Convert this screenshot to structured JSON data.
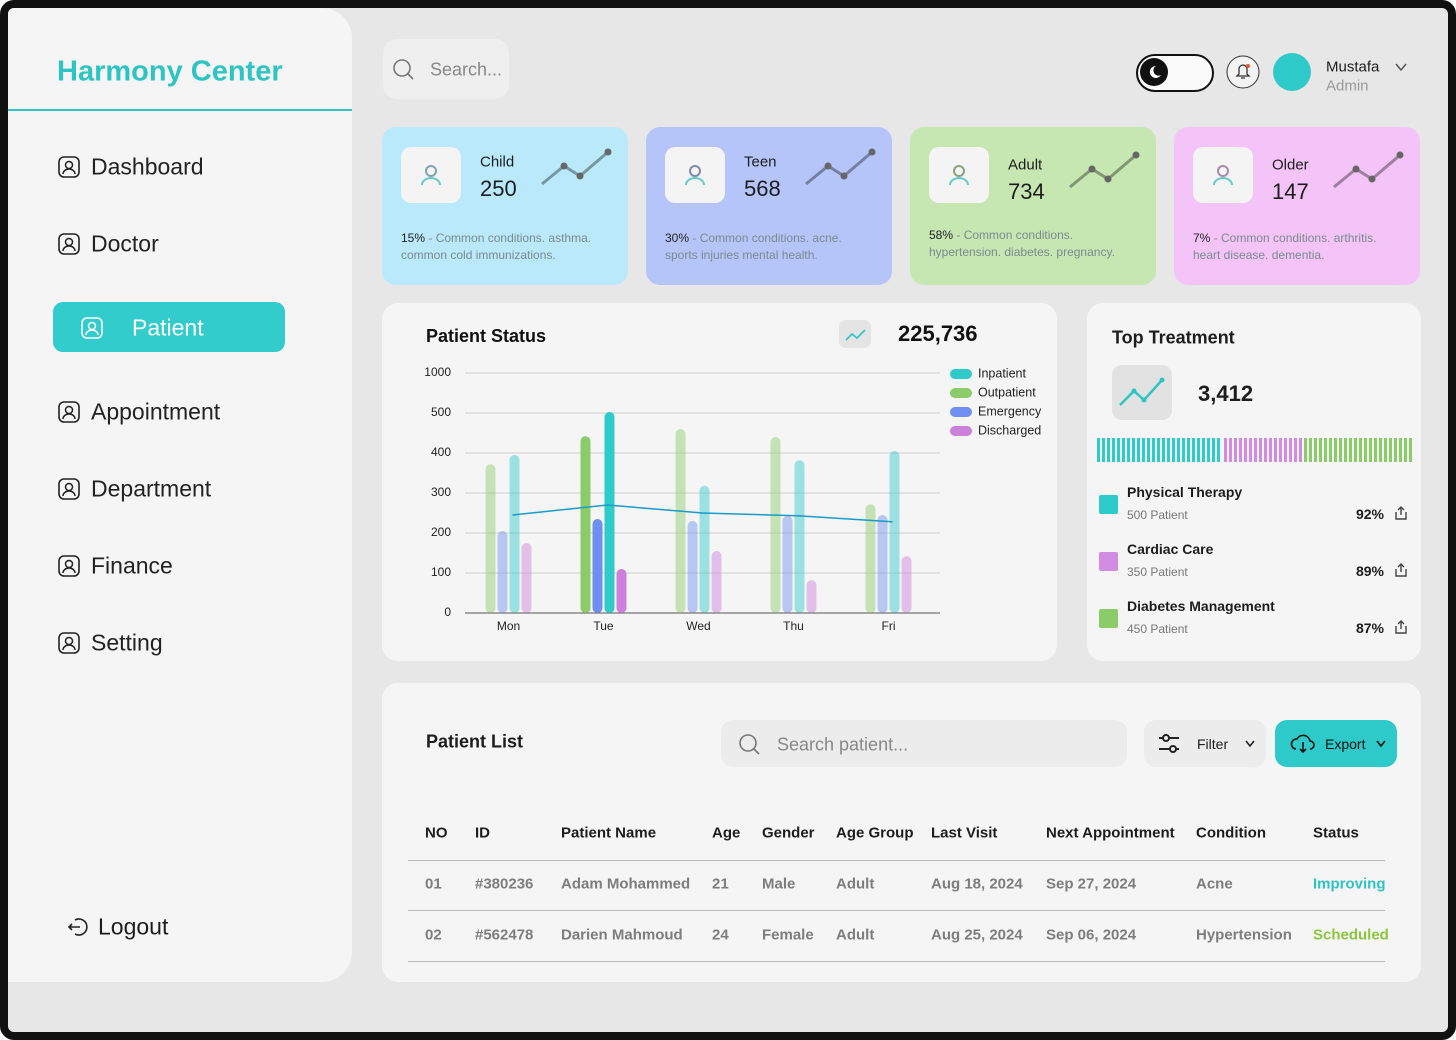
{
  "sidebar": {
    "brand": "Harmony Center",
    "nav": [
      "Dashboard",
      "Doctor",
      "Patient",
      "Appointment",
      "Department",
      "Finance",
      "Setting"
    ],
    "active": "Patient",
    "logout": "Logout"
  },
  "header": {
    "search_placeholder": "Search...",
    "user_name": "Mustafa",
    "user_role": "Admin"
  },
  "cards": [
    {
      "label": "Child",
      "value": 250,
      "percent": "15%",
      "description": [
        "- Common conditions. asthma.",
        "common cold immunizations."
      ],
      "color": "#b9e9fb"
    },
    {
      "label": "Teen",
      "value": 568,
      "percent": "30%",
      "description": [
        "- Common conditions. acne.",
        "sports injuries mental health."
      ],
      "color": "#b6c5f9"
    },
    {
      "label": "Adult",
      "value": 734,
      "percent": "58%",
      "description": [
        "- Common conditions.",
        "hypertension. diabetes. pregnancy."
      ],
      "color": "#c6e7b2"
    },
    {
      "label": "Older",
      "value": 147,
      "percent": "7%",
      "description": [
        "- Common conditions. arthritis.",
        "heart disease. dementia."
      ],
      "color": "#f4c4f8"
    }
  ],
  "chart_data": {
    "type": "bar",
    "title": "Patient Status",
    "total": "225,736",
    "categories": [
      "Mon",
      "Tue",
      "Wed",
      "Thu",
      "Fri"
    ],
    "series": [
      {
        "name": "Inpatient",
        "color": "#2fcaca",
        "values": [
          395,
          512,
          318,
          382,
          405
        ]
      },
      {
        "name": "Outpatient",
        "color": "#8ccb6a",
        "values": [
          372,
          442,
          460,
          440,
          272
        ]
      },
      {
        "name": "Emergency",
        "color": "#6f8ef0",
        "values": [
          205,
          235,
          230,
          243,
          245
        ]
      },
      {
        "name": "Discharged",
        "color": "#cc7fdb",
        "values": [
          175,
          110,
          155,
          82,
          142
        ]
      }
    ],
    "trend": {
      "color": "#1a9bc8",
      "values": [
        245,
        270,
        250,
        243,
        228
      ]
    },
    "highlight": "Tue",
    "ylim": [
      0,
      1000
    ],
    "yticks": [
      0,
      100,
      200,
      300,
      400,
      500,
      1000
    ],
    "grid": true
  },
  "top_treatment": {
    "title": "Top Treatment",
    "value": "3,412",
    "items": [
      {
        "name": "Physical Therapy",
        "patients": "500 Patient",
        "percent": "92%",
        "color": "#2fcaca"
      },
      {
        "name": "Cardiac Care",
        "patients": "350 Patient",
        "percent": "89%",
        "color": "#d18be0"
      },
      {
        "name": "Diabetes Management",
        "patients": "450 Patient",
        "percent": "87%",
        "color": "#8ccb6a"
      }
    ]
  },
  "patient_list": {
    "title": "Patient List",
    "search_placeholder": "Search patient...",
    "filter": "Filter",
    "export": "Export",
    "columns": [
      "NO",
      "ID",
      "Patient Name",
      "Age",
      "Gender",
      "Age Group",
      "Last Visit",
      "Next Appointment",
      "Condition",
      "Status"
    ],
    "rows": [
      [
        "01",
        "#380236",
        "Adam Mohammed",
        "21",
        "Male",
        "Adult",
        "Aug 18, 2024",
        "Sep 27, 2024",
        "Acne",
        "Improving"
      ],
      [
        "02",
        "#562478",
        "Darien Mahmoud",
        "24",
        "Female",
        "Adult",
        "Aug 25, 2024",
        "Sep 06, 2024",
        "Hypertension",
        "Scheduled"
      ]
    ],
    "status_colors": {
      "Improving": "#2fc4c4",
      "Scheduled": "#8cc63f"
    }
  }
}
